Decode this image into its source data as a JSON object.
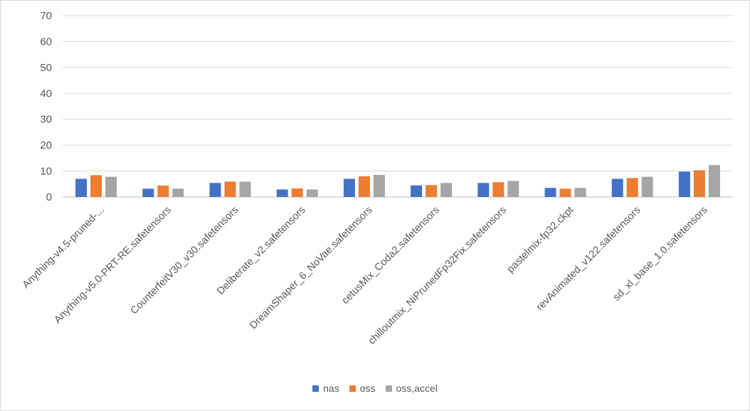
{
  "chart_data": {
    "type": "bar",
    "title": "",
    "xlabel": "",
    "ylabel": "",
    "ylim": [
      0,
      70
    ],
    "yticks": [
      0,
      10,
      20,
      30,
      40,
      50,
      60,
      70
    ],
    "grid": true,
    "legend_position": "bottom",
    "categories": [
      "Anything-v4.5-pruned-...",
      "Anything-v5.0-PRT-RE.safetensors",
      "CounterfeitV30_v30.safetensors",
      "Deliberate_v2.safetensors",
      "DreamShaper_6_NoVae.safetensors",
      "cetusMix_Coda2.safetensors",
      "chilloutmix_NiPrunedFp32Fix.safetensors",
      "pastelmix-fp32.ckpt",
      "revAnimated_v122.safetensors",
      "sd_xl_base_1.0.safetensors"
    ],
    "series": [
      {
        "name": "nas",
        "color": "#4472c4",
        "values": [
          7.0,
          3.2,
          5.4,
          2.9,
          7.0,
          4.5,
          5.4,
          3.5,
          7.0,
          9.8
        ]
      },
      {
        "name": "oss",
        "color": "#ed7d31",
        "values": [
          8.4,
          4.4,
          5.9,
          3.3,
          8.0,
          4.6,
          5.7,
          3.2,
          7.3,
          10.3
        ]
      },
      {
        "name": "oss,accel",
        "color": "#a5a5a5",
        "values": [
          7.8,
          3.2,
          5.9,
          2.9,
          8.5,
          5.4,
          6.2,
          3.5,
          7.8,
          12.3
        ]
      }
    ]
  }
}
